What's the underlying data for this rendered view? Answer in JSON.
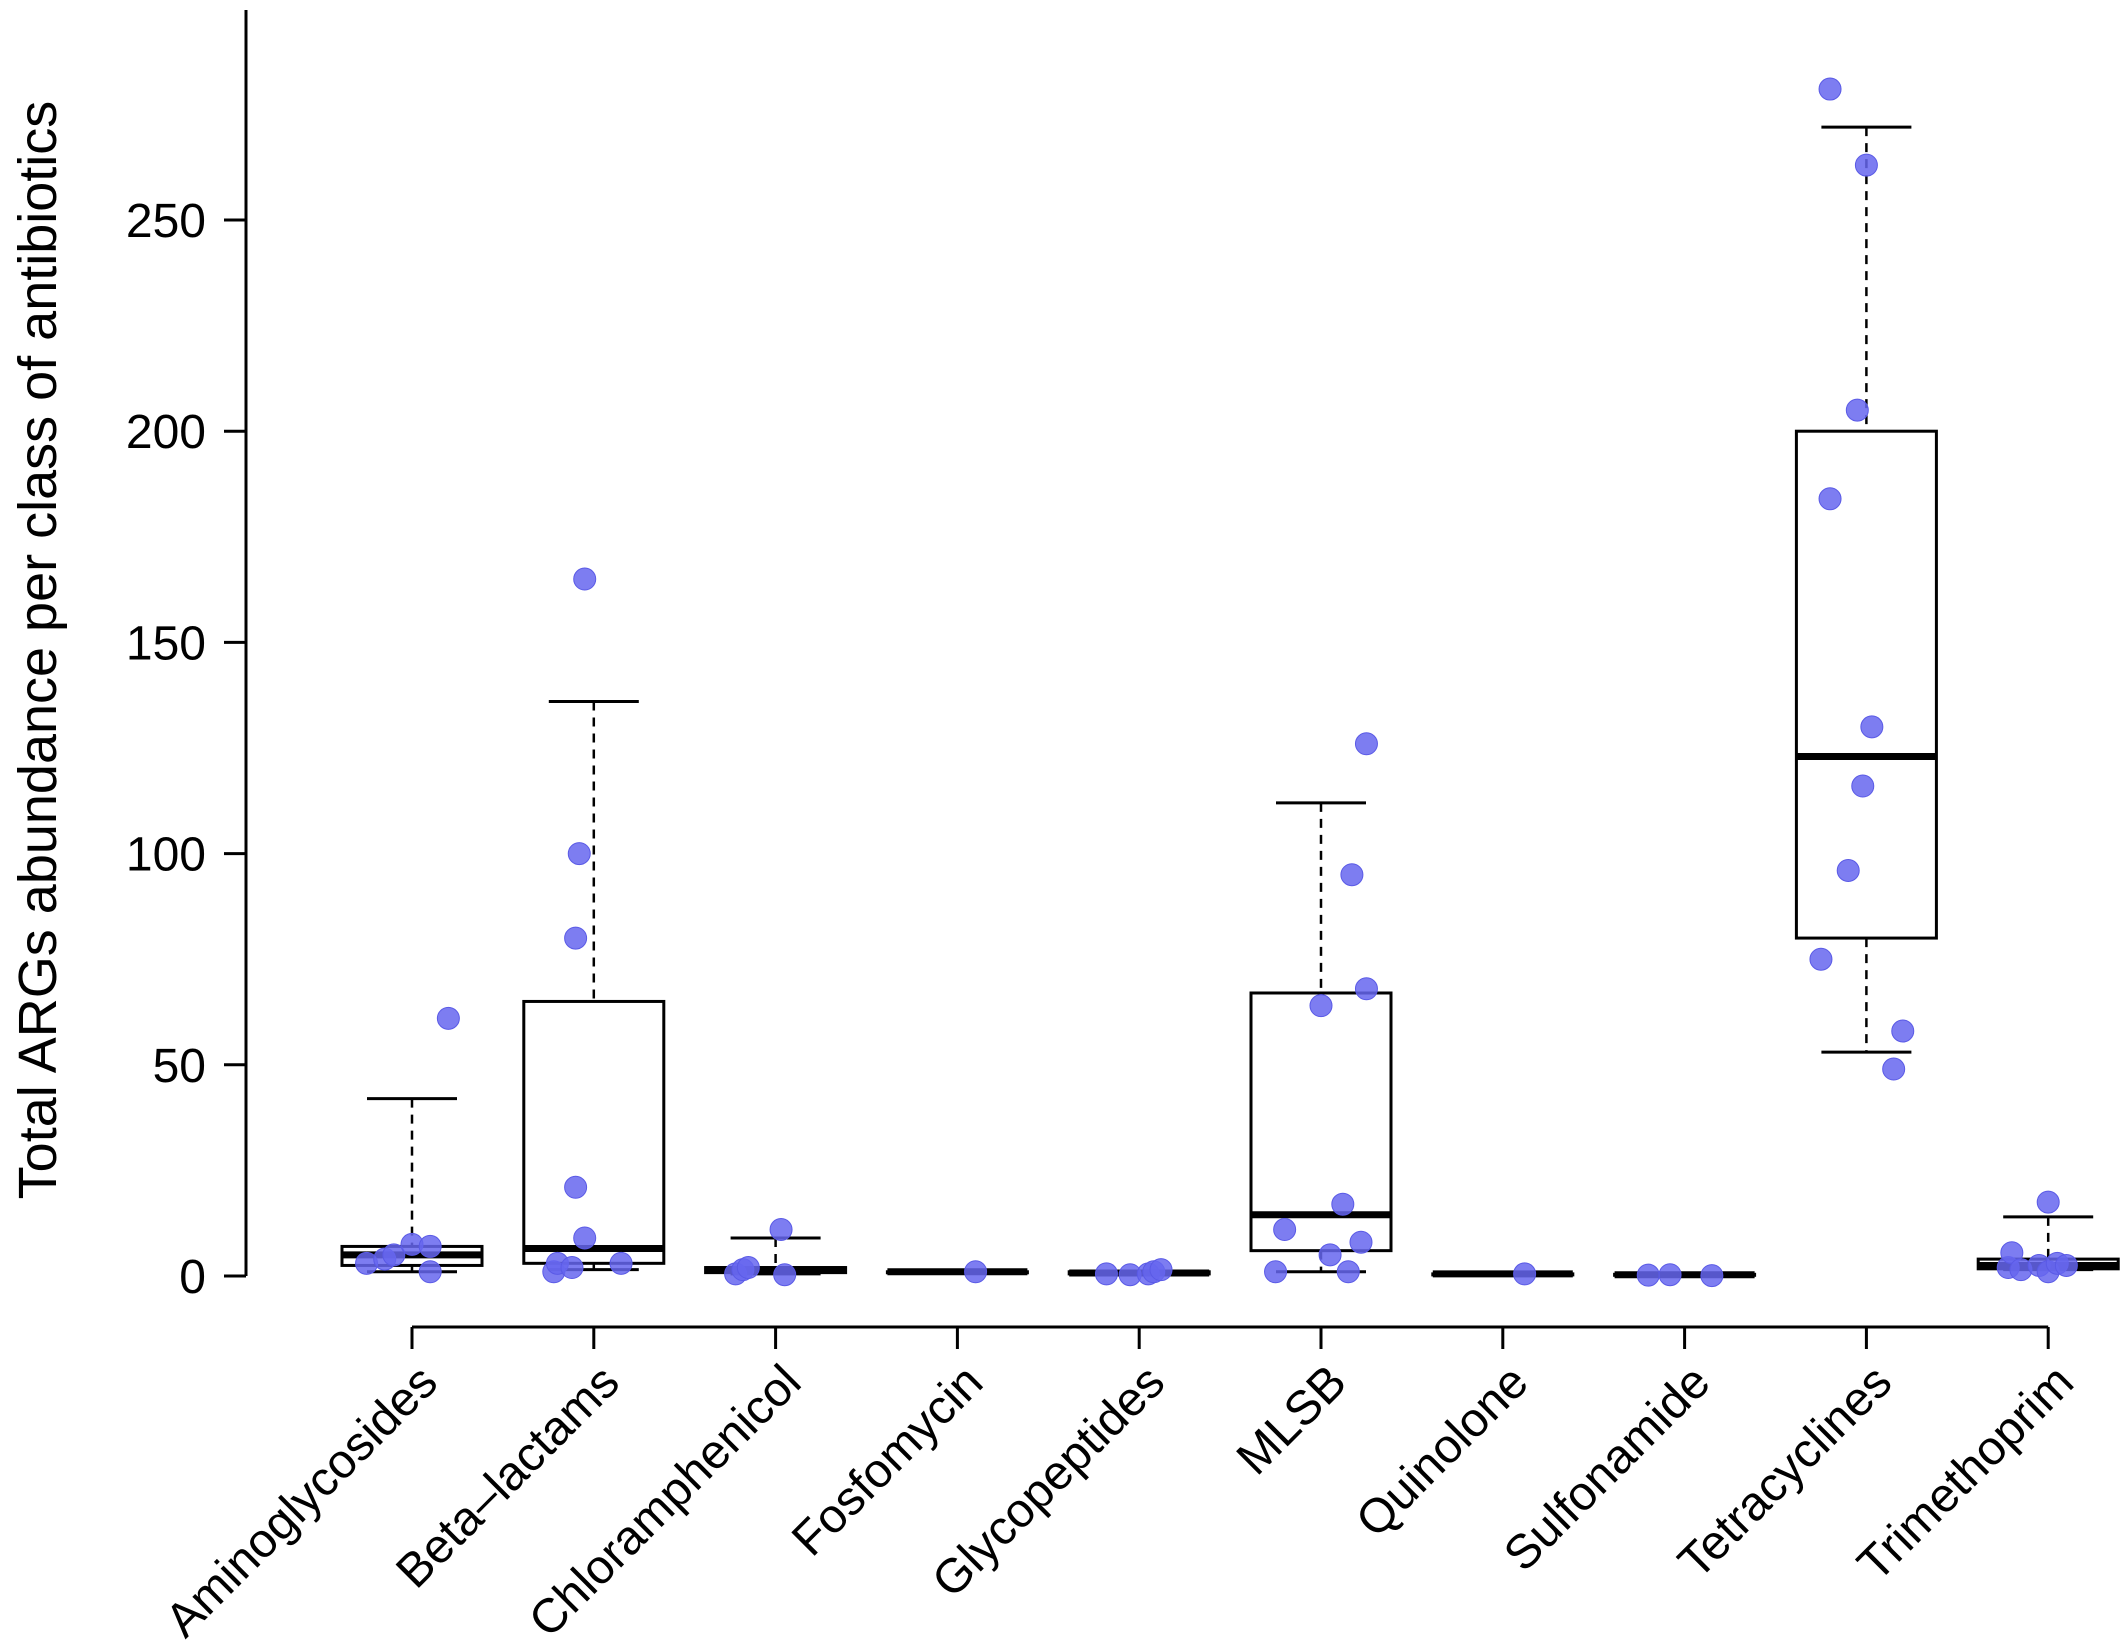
{
  "chart_data": {
    "type": "box",
    "title": "",
    "xlabel": "",
    "ylabel": "Total ARGs abundance per class of antibiotics",
    "ylim": [
      0,
      300
    ],
    "yticks": [
      0,
      50,
      100,
      150,
      200,
      250
    ],
    "yticks_labels": [
      "0",
      "50",
      "100",
      "150",
      "200",
      "250"
    ],
    "categories": [
      "Aminoglycosides",
      "Beta–lactams",
      "Chloramphenicol",
      "Fosfomycin",
      "Glycopeptides",
      "MLSB",
      "Quinolone",
      "Sulfonamide",
      "Tetracyclines",
      "Trimethoprim"
    ],
    "boxes": [
      {
        "whisker_low": 1,
        "q1": 2.5,
        "median": 5,
        "q3": 7,
        "whisker_high": 42
      },
      {
        "whisker_low": 1.5,
        "q1": 3,
        "median": 6.5,
        "q3": 65,
        "whisker_high": 136
      },
      {
        "whisker_low": 0.5,
        "q1": 0.8,
        "median": 1.5,
        "q3": 2,
        "whisker_high": 9
      },
      {
        "whisker_low": 1,
        "q1": 1,
        "median": 1,
        "q3": 1,
        "whisker_high": 1
      },
      {
        "whisker_low": 0.5,
        "q1": 0.5,
        "median": 0.7,
        "q3": 1,
        "whisker_high": 1
      },
      {
        "whisker_low": 1,
        "q1": 6,
        "median": 14.5,
        "q3": 67,
        "whisker_high": 112
      },
      {
        "whisker_low": 0.5,
        "q1": 0.5,
        "median": 0.5,
        "q3": 0.5,
        "whisker_high": 0.5
      },
      {
        "whisker_low": 0.2,
        "q1": 0.2,
        "median": 0.3,
        "q3": 0.4,
        "whisker_high": 0.4
      },
      {
        "whisker_low": 53,
        "q1": 80,
        "median": 123,
        "q3": 200,
        "whisker_high": 272
      },
      {
        "whisker_low": 1.5,
        "q1": 1.7,
        "median": 2.5,
        "q3": 4,
        "whisker_high": 14
      }
    ],
    "points": [
      [
        {
          "dx": -0.25,
          "y": 3
        },
        {
          "dx": -0.15,
          "y": 4
        },
        {
          "dx": -0.1,
          "y": 5
        },
        {
          "dx": 0.0,
          "y": 7.5
        },
        {
          "dx": 0.1,
          "y": 1
        },
        {
          "dx": 0.1,
          "y": 7
        },
        {
          "dx": 0.2,
          "y": 61
        }
      ],
      [
        {
          "dx": -0.22,
          "y": 1
        },
        {
          "dx": -0.2,
          "y": 3
        },
        {
          "dx": -0.12,
          "y": 2
        },
        {
          "dx": -0.1,
          "y": 21
        },
        {
          "dx": -0.1,
          "y": 80
        },
        {
          "dx": -0.08,
          "y": 100
        },
        {
          "dx": -0.05,
          "y": 9
        },
        {
          "dx": -0.05,
          "y": 165
        },
        {
          "dx": 0.15,
          "y": 3
        }
      ],
      [
        {
          "dx": -0.22,
          "y": 0.5
        },
        {
          "dx": -0.18,
          "y": 1.5
        },
        {
          "dx": -0.15,
          "y": 2
        },
        {
          "dx": 0.03,
          "y": 11
        },
        {
          "dx": 0.05,
          "y": 0.3
        }
      ],
      [
        {
          "dx": 0.1,
          "y": 1
        }
      ],
      [
        {
          "dx": -0.18,
          "y": 0.5
        },
        {
          "dx": -0.05,
          "y": 0.3
        },
        {
          "dx": 0.05,
          "y": 0.5
        },
        {
          "dx": 0.08,
          "y": 1
        },
        {
          "dx": 0.12,
          "y": 1.5
        }
      ],
      [
        {
          "dx": -0.25,
          "y": 1
        },
        {
          "dx": -0.2,
          "y": 11
        },
        {
          "dx": 0.0,
          "y": 64
        },
        {
          "dx": 0.05,
          "y": 5
        },
        {
          "dx": 0.12,
          "y": 17
        },
        {
          "dx": 0.15,
          "y": 1
        },
        {
          "dx": 0.17,
          "y": 95
        },
        {
          "dx": 0.22,
          "y": 8
        },
        {
          "dx": 0.25,
          "y": 68
        },
        {
          "dx": 0.25,
          "y": 126
        }
      ],
      [
        {
          "dx": 0.12,
          "y": 0.5
        }
      ],
      [
        {
          "dx": -0.2,
          "y": 0.2
        },
        {
          "dx": -0.08,
          "y": 0.3
        },
        {
          "dx": 0.15,
          "y": 0.1
        }
      ],
      [
        {
          "dx": -0.25,
          "y": 75
        },
        {
          "dx": -0.2,
          "y": 184
        },
        {
          "dx": -0.1,
          "y": 96
        },
        {
          "dx": -0.2,
          "y": 281
        },
        {
          "dx": -0.05,
          "y": 205
        },
        {
          "dx": 0.0,
          "y": 263
        },
        {
          "dx": -0.02,
          "y": 116
        },
        {
          "dx": 0.03,
          "y": 130
        },
        {
          "dx": 0.15,
          "y": 49
        },
        {
          "dx": 0.2,
          "y": 58
        }
      ],
      [
        {
          "dx": -0.22,
          "y": 2
        },
        {
          "dx": -0.2,
          "y": 5.5
        },
        {
          "dx": -0.15,
          "y": 1.5
        },
        {
          "dx": -0.05,
          "y": 2.5
        },
        {
          "dx": 0.0,
          "y": 1
        },
        {
          "dx": 0.0,
          "y": 17.5
        },
        {
          "dx": 0.05,
          "y": 3
        },
        {
          "dx": 0.1,
          "y": 2.5
        }
      ]
    ],
    "colors": {
      "point": "#6666ee",
      "point_stroke": "#5a5ae6",
      "line": "#000000"
    }
  }
}
